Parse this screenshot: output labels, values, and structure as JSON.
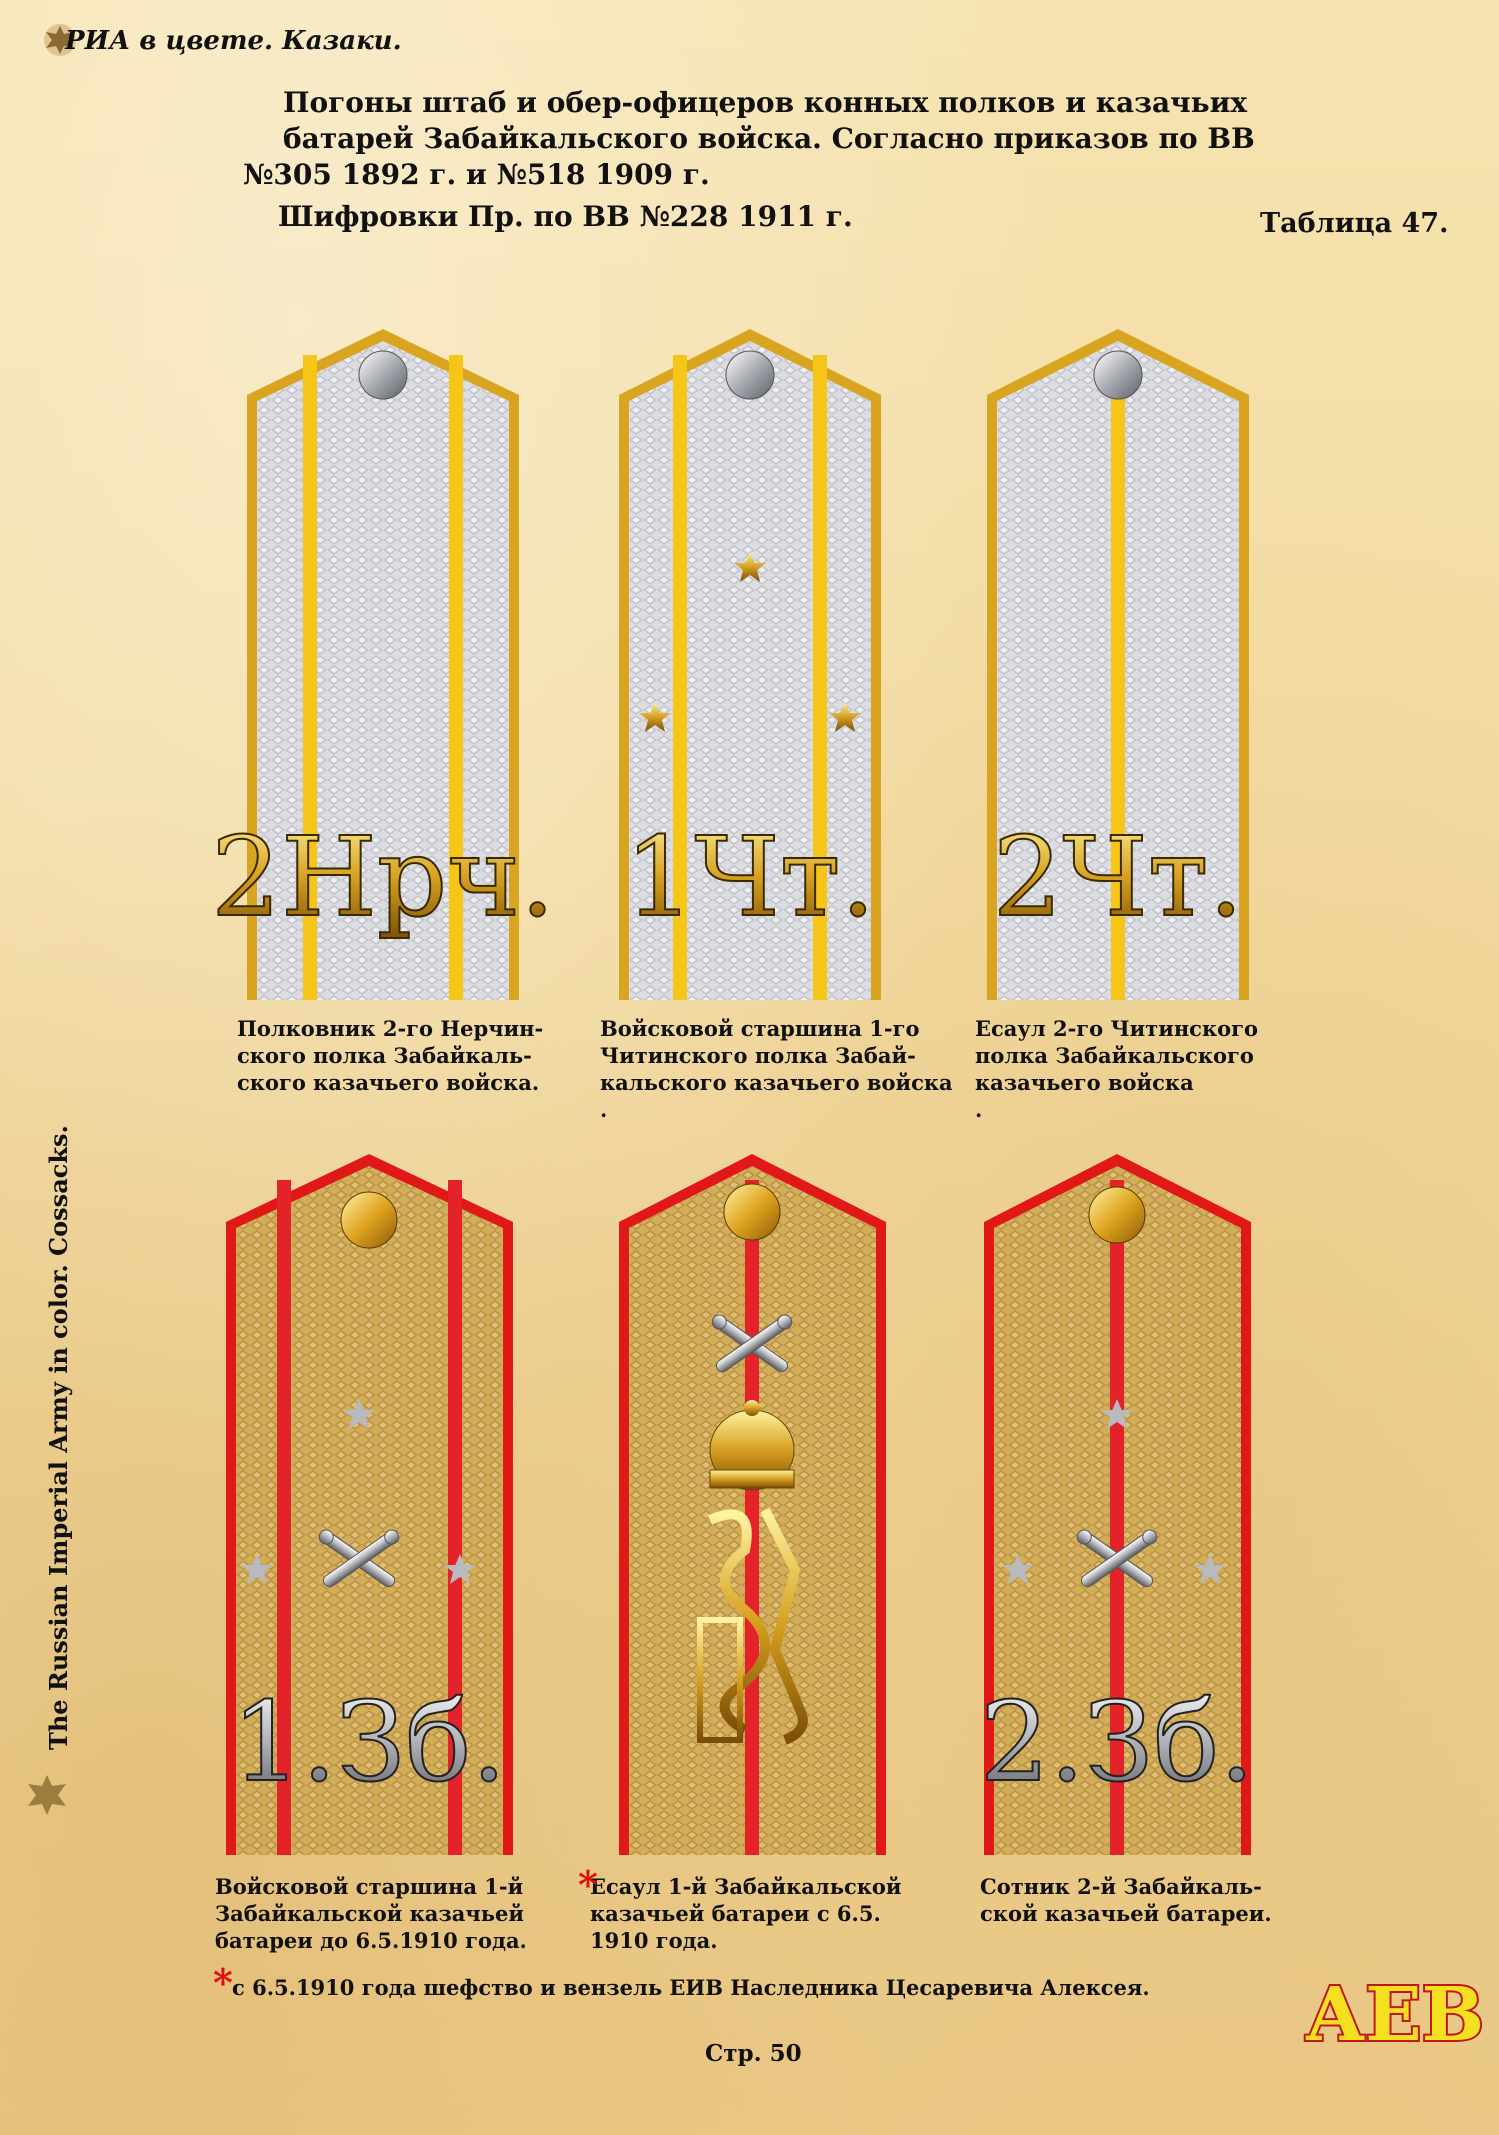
{
  "header": {
    "title": "РИА в цвете. Казаки."
  },
  "page": {
    "title_lines": [
      "Погоны штаб и обер-офицеров конных полков и казачьих",
      "батарей Забайкальского войска. Согласно приказов по ВВ",
      "№305 1892 г. и №518 1909 г.",
      "Шифровки Пр. по ВВ  №228 1911 г."
    ],
    "table_number": "Таблица 47.",
    "page_number": "Стр. 50"
  },
  "boards": [
    {
      "cipher": "2Нрч.",
      "label": "Полковник 2-го Нерчин-\nского полка Забайкаль-\nского казачьего войска."
    },
    {
      "cipher": "1Чт.",
      "label": "Войсковой старшина 1-го\nЧитинского полка Забай-\nкальского казачьего войска\n."
    },
    {
      "cipher": "2Чт.",
      "label": "Есаул 2-го Читинского\nполка Забайкальского\nказачьего войска\n."
    },
    {
      "cipher": "1.Зб.",
      "label": "Войсковой старшина 1-й\nЗабайкальской казачьей\nбатареи до 6.5.1910 года."
    },
    {
      "cipher": "",
      "label": "Есаул 1-й Забайкальской\nказачьей батареи с 6.5.\n1910 года."
    },
    {
      "cipher": "2.Зб.",
      "label": "Сотник 2-й Забайкаль-\nской казачьей батареи."
    }
  ],
  "footnote": {
    "mark": "*",
    "text": "с 6.5.1910 года шефство и вензель ЕИВ Наследника Цесаревича Алексея."
  },
  "side": {
    "text": "The Russian Imperial Army in color. Cossacks."
  },
  "logo": {
    "text": "АЕВ"
  },
  "colors": {
    "silver": "#d8d8dc",
    "gold": "#c9a249",
    "yellow_stripe": "#f5c518",
    "red": "#e3222a",
    "piping_gold": "#d9a520",
    "piping_red": "#e01818"
  }
}
